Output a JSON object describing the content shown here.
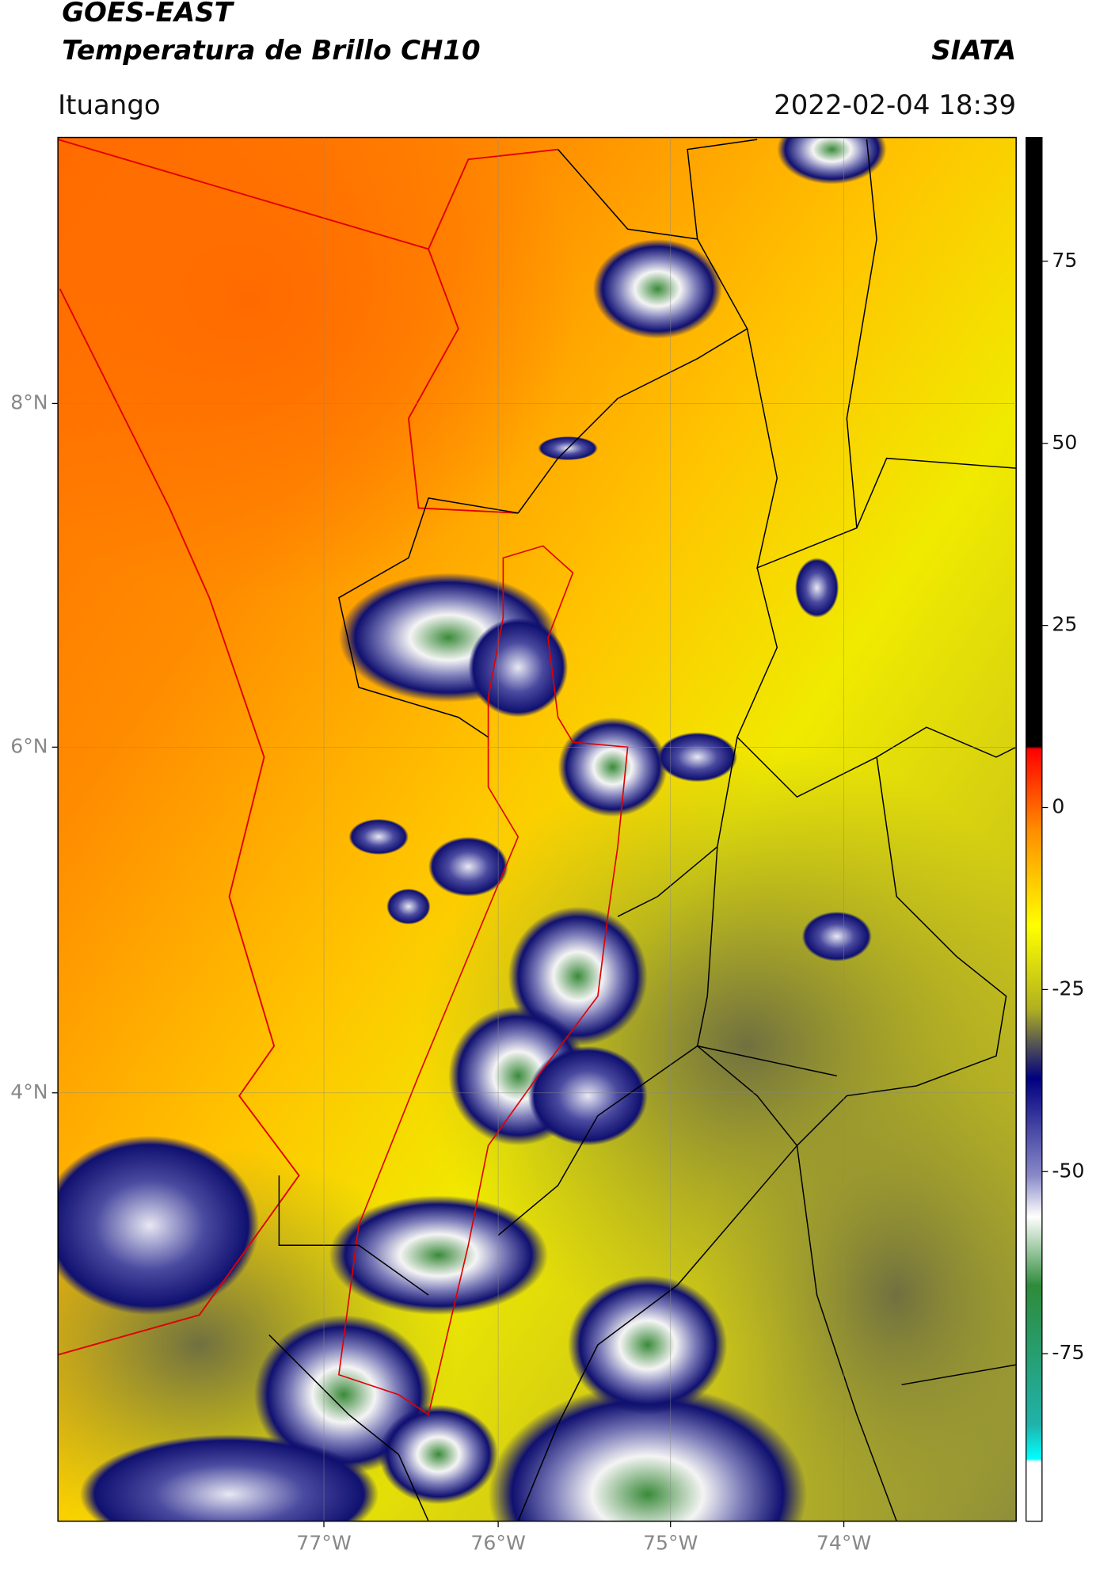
{
  "header": {
    "title": "GOES-EAST",
    "subtitle": "Temperatura de Brillo CH10",
    "source": "SIATA",
    "location": "Ituango",
    "datetime": "2022-02-04 18:39"
  },
  "map": {
    "lat_labels": [
      "8°N",
      "6°N",
      "4°N"
    ],
    "lon_labels": [
      "77°W",
      "76°W",
      "75°W",
      "74°W"
    ]
  },
  "colorbar": {
    "lim": [
      -98,
      92
    ],
    "ticks": [
      75,
      50,
      25,
      0,
      -25,
      -50,
      -75
    ]
  }
}
